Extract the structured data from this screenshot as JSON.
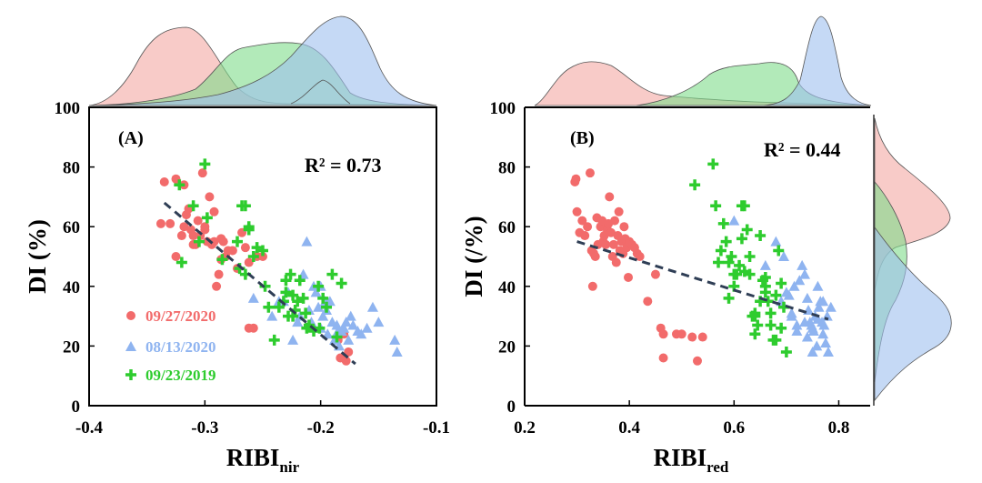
{
  "colors": {
    "s2020sep": "#f26b6b",
    "s2020aug": "#8fb4f0",
    "s2019sep": "#2ecc2e",
    "fit": "#2f3e55",
    "kde_red": "#f4a8a4",
    "kde_blue": "#9ec0ee",
    "kde_green": "#7fdc8a"
  },
  "chart_data": [
    {
      "type": "scatter",
      "panel_label": "(A)",
      "annotation": "R² = 0.73",
      "xlabel": "RIBI",
      "xlabel_sub": "nir",
      "ylabel": "DI (%)",
      "xlim": [
        -0.4,
        -0.1
      ],
      "ylim": [
        0,
        100
      ],
      "xticks": [
        "-0.4",
        "-0.3",
        "-0.2",
        "-0.1"
      ],
      "yticks": [
        "0",
        "20",
        "40",
        "60",
        "80",
        "100"
      ],
      "legend": {
        "position": "bottom-left",
        "entries": [
          "09/27/2020",
          "08/13/2020",
          "09/23/2019"
        ]
      },
      "fit_line": {
        "x": [
          -0.335,
          -0.17
        ],
        "y": [
          68,
          14
        ]
      },
      "series": [
        {
          "name": "09/27/2020",
          "marker": "circle",
          "color_key": "s2020sep",
          "x": [
            -0.338,
            -0.335,
            -0.33,
            -0.325,
            -0.32,
            -0.318,
            -0.316,
            -0.314,
            -0.312,
            -0.31,
            -0.308,
            -0.306,
            -0.304,
            -0.302,
            -0.3,
            -0.298,
            -0.296,
            -0.294,
            -0.292,
            -0.29,
            -0.288,
            -0.286,
            -0.284,
            -0.282,
            -0.28,
            -0.276,
            -0.272,
            -0.268,
            -0.265,
            -0.262,
            -0.258,
            -0.255,
            -0.25,
            -0.325,
            -0.31,
            -0.3,
            -0.292,
            -0.286,
            -0.318,
            -0.262,
            -0.185,
            -0.18,
            -0.176,
            -0.178,
            -0.183
          ],
          "y": [
            61,
            75,
            61,
            76,
            57,
            60,
            64,
            66,
            59,
            57,
            54,
            62,
            57,
            78,
            60,
            55,
            70,
            54,
            65,
            40,
            44,
            49,
            55,
            50,
            52,
            52,
            46,
            58,
            53,
            48,
            26,
            50,
            50,
            50,
            54,
            59,
            55,
            56,
            74,
            26,
            22,
            24,
            18,
            15,
            16
          ]
        },
        {
          "name": "08/13/2020",
          "marker": "triangle",
          "color_key": "s2020aug",
          "x": [
            -0.262,
            -0.258,
            -0.242,
            -0.236,
            -0.232,
            -0.228,
            -0.224,
            -0.22,
            -0.218,
            -0.215,
            -0.212,
            -0.21,
            -0.208,
            -0.206,
            -0.204,
            -0.202,
            -0.2,
            -0.198,
            -0.196,
            -0.194,
            -0.192,
            -0.19,
            -0.188,
            -0.186,
            -0.184,
            -0.182,
            -0.18,
            -0.178,
            -0.176,
            -0.174,
            -0.172,
            -0.168,
            -0.165,
            -0.16,
            -0.155,
            -0.15,
            -0.136,
            -0.134,
            -0.2,
            -0.21,
            -0.195,
            -0.185
          ],
          "y": [
            60,
            36,
            30,
            35,
            35,
            38,
            22,
            28,
            30,
            44,
            55,
            32,
            28,
            40,
            38,
            33,
            26,
            30,
            35,
            24,
            35,
            28,
            22,
            27,
            20,
            25,
            26,
            28,
            22,
            30,
            27,
            25,
            24,
            26,
            33,
            28,
            22,
            18,
            40,
            27,
            32,
            25
          ]
        },
        {
          "name": "09/23/2019",
          "marker": "plus",
          "color_key": "s2019sep",
          "x": [
            -0.3,
            -0.322,
            -0.32,
            -0.31,
            -0.298,
            -0.272,
            -0.265,
            -0.262,
            -0.268,
            -0.258,
            -0.255,
            -0.25,
            -0.248,
            -0.24,
            -0.236,
            -0.232,
            -0.23,
            -0.228,
            -0.226,
            -0.224,
            -0.222,
            -0.22,
            -0.218,
            -0.215,
            -0.213,
            -0.21,
            -0.206,
            -0.202,
            -0.198,
            -0.195,
            -0.19,
            -0.186,
            -0.182,
            -0.262,
            -0.27,
            -0.245,
            -0.224,
            -0.212,
            -0.305,
            -0.285,
            -0.265,
            -0.23,
            -0.201
          ],
          "y": [
            81,
            74,
            48,
            67,
            63,
            55,
            67,
            59,
            67,
            50,
            53,
            52,
            40,
            22,
            33,
            35,
            38,
            30,
            44,
            37,
            32,
            35,
            42,
            36,
            31,
            27,
            25,
            40,
            36,
            33,
            44,
            23,
            41,
            60,
            46,
            33,
            30,
            26,
            55,
            49,
            44,
            42,
            26
          ]
        }
      ]
    },
    {
      "type": "scatter",
      "panel_label": "(B)",
      "annotation": "R² = 0.44",
      "xlabel": "RIBI",
      "xlabel_sub": "red",
      "ylabel": "DI (/%)",
      "xlim": [
        0.2,
        0.86
      ],
      "ylim": [
        0,
        100
      ],
      "xticks": [
        "0.2",
        "0.4",
        "0.6",
        "0.8"
      ],
      "yticks": [
        "0",
        "20",
        "40",
        "60",
        "80",
        "100"
      ],
      "fit_line": {
        "x": [
          0.3,
          0.78
        ],
        "y": [
          55,
          29
        ]
      },
      "series": [
        {
          "name": "09/27/2020",
          "marker": "circle",
          "color_key": "s2020sep",
          "x": [
            0.296,
            0.298,
            0.3,
            0.305,
            0.31,
            0.315,
            0.32,
            0.325,
            0.328,
            0.33,
            0.332,
            0.335,
            0.338,
            0.34,
            0.345,
            0.348,
            0.35,
            0.352,
            0.355,
            0.358,
            0.36,
            0.362,
            0.365,
            0.368,
            0.37,
            0.372,
            0.375,
            0.378,
            0.38,
            0.382,
            0.385,
            0.388,
            0.39,
            0.392,
            0.395,
            0.398,
            0.4,
            0.405,
            0.41,
            0.415,
            0.42,
            0.435,
            0.45,
            0.46,
            0.465,
            0.49,
            0.5,
            0.52,
            0.53,
            0.54,
            0.465
          ],
          "y": [
            75,
            76,
            65,
            58,
            62,
            57,
            60,
            78,
            52,
            40,
            51,
            50,
            63,
            54,
            60,
            62,
            55,
            57,
            54,
            59,
            61,
            70,
            58,
            50,
            54,
            62,
            48,
            57,
            65,
            52,
            55,
            51,
            60,
            56,
            53,
            43,
            55,
            54,
            53,
            51,
            50,
            35,
            44,
            26,
            16,
            24,
            24,
            23,
            15,
            23,
            24
          ]
        },
        {
          "name": "08/13/2020",
          "marker": "triangle",
          "color_key": "s2020aug",
          "x": [
            0.6,
            0.66,
            0.68,
            0.69,
            0.7,
            0.705,
            0.71,
            0.715,
            0.72,
            0.725,
            0.73,
            0.735,
            0.74,
            0.742,
            0.745,
            0.748,
            0.75,
            0.752,
            0.755,
            0.758,
            0.76,
            0.762,
            0.765,
            0.768,
            0.77,
            0.772,
            0.775,
            0.778,
            0.78,
            0.785,
            0.695,
            0.735,
            0.72,
            0.76,
            0.74,
            0.77,
            0.71,
            0.75
          ],
          "y": [
            62,
            47,
            55,
            35,
            38,
            37,
            30,
            40,
            25,
            42,
            47,
            28,
            36,
            32,
            28,
            27,
            18,
            25,
            30,
            20,
            29,
            33,
            35,
            28,
            24,
            27,
            21,
            30,
            18,
            33,
            50,
            44,
            27,
            40,
            23,
            35,
            31,
            26
          ]
        },
        {
          "name": "09/23/2019",
          "marker": "plus",
          "color_key": "s2019sep",
          "x": [
            0.525,
            0.56,
            0.565,
            0.57,
            0.575,
            0.58,
            0.585,
            0.59,
            0.595,
            0.6,
            0.605,
            0.61,
            0.615,
            0.62,
            0.625,
            0.63,
            0.635,
            0.64,
            0.645,
            0.65,
            0.655,
            0.66,
            0.665,
            0.67,
            0.675,
            0.68,
            0.685,
            0.69,
            0.695,
            0.7,
            0.62,
            0.64,
            0.66,
            0.68,
            0.65,
            0.6,
            0.63,
            0.69,
            0.64,
            0.615,
            0.67,
            0.59,
            0.66
          ],
          "y": [
            74,
            81,
            67,
            48,
            52,
            61,
            55,
            48,
            50,
            40,
            44,
            47,
            67,
            67,
            59,
            44,
            30,
            24,
            27,
            57,
            42,
            40,
            35,
            31,
            22,
            37,
            52,
            41,
            33,
            18,
            45,
            30,
            38,
            22,
            35,
            44,
            50,
            26,
            31,
            56,
            27,
            36,
            43
          ]
        }
      ]
    }
  ]
}
